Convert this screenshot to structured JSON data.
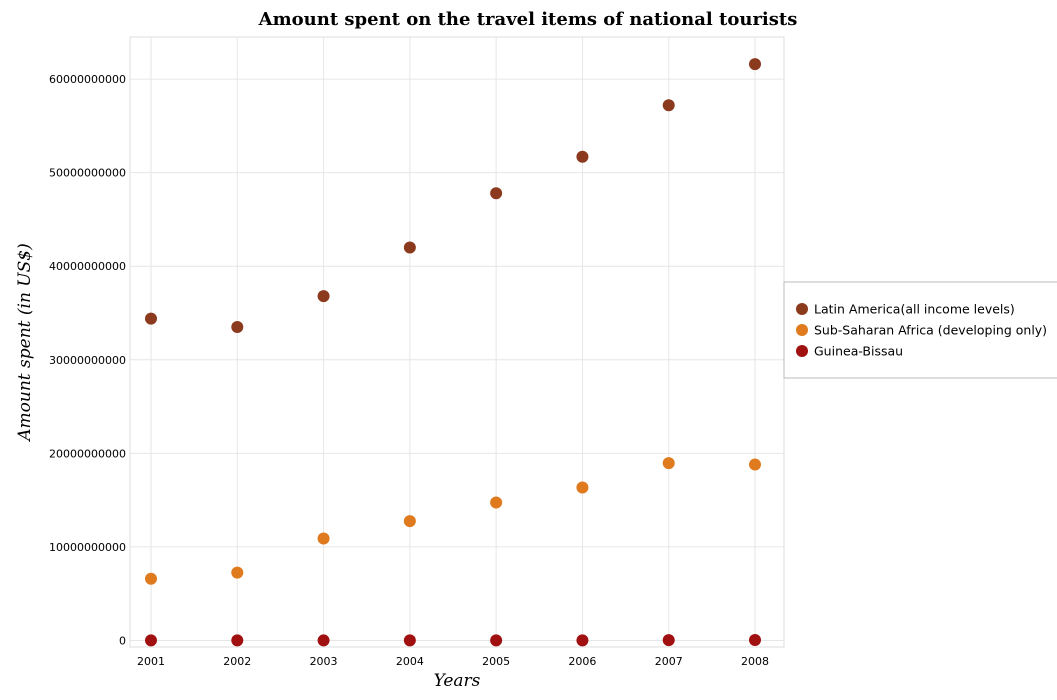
{
  "chart_data": {
    "type": "scatter",
    "title": "Amount spent on the travel items of national tourists",
    "xlabel": "Years",
    "ylabel": "Amount spent (in US$)",
    "categories": [
      "2001",
      "2002",
      "2003",
      "2004",
      "2005",
      "2006",
      "2007",
      "2008"
    ],
    "yticks": [
      0,
      10000000000,
      20000000000,
      30000000000,
      40000000000,
      50000000000,
      60000000000
    ],
    "ytick_labels": [
      "0",
      "10000000000",
      "20000000000",
      "30000000000",
      "40000000000",
      "50000000000",
      "60000000000"
    ],
    "ylim": [
      -700000000,
      64500000000
    ],
    "grid": true,
    "legend_position": "right",
    "series": [
      {
        "name": "Latin America(all income levels)",
        "color": "#8b3a1e",
        "values": [
          34400000000,
          33500000000,
          36800000000,
          42000000000,
          47800000000,
          51700000000,
          57200000000,
          61600000000
        ]
      },
      {
        "name": "Sub-Saharan Africa (developing only)",
        "color": "#e07a1f",
        "values": [
          6600000000,
          7250000000,
          10900000000,
          12750000000,
          14750000000,
          16350000000,
          18950000000,
          18800000000
        ]
      },
      {
        "name": "Guinea-Bissau",
        "color": "#a01010",
        "values": [
          3000000,
          2500000,
          2000000,
          2500000,
          2500000,
          3000000,
          38000000,
          45000000
        ]
      }
    ]
  }
}
